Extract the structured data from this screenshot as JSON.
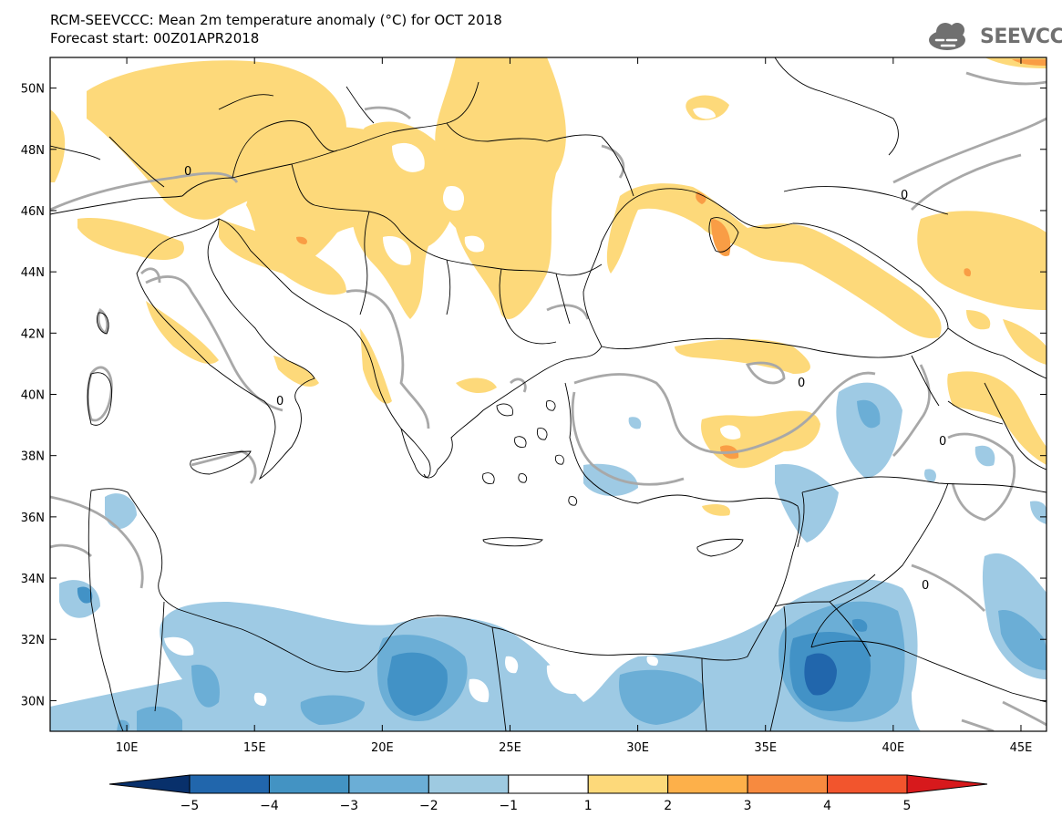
{
  "title": {
    "line1": "RCM-SEEVCCC: Mean 2m temperature anomaly (°C) for OCT 2018",
    "line2": "Forecast start: 00Z01APR2018"
  },
  "logo": {
    "text": "SEEVCCC"
  },
  "map": {
    "lon_range": [
      7,
      46
    ],
    "lat_range": [
      29,
      51
    ],
    "lon_ticks": [
      {
        "v": 10,
        "label": "10E"
      },
      {
        "v": 15,
        "label": "15E"
      },
      {
        "v": 20,
        "label": "20E"
      },
      {
        "v": 25,
        "label": "25E"
      },
      {
        "v": 30,
        "label": "30E"
      },
      {
        "v": 35,
        "label": "35E"
      },
      {
        "v": 40,
        "label": "40E"
      },
      {
        "v": 45,
        "label": "45E"
      }
    ],
    "lat_ticks": [
      {
        "v": 30,
        "label": "30N"
      },
      {
        "v": 32,
        "label": "32N"
      },
      {
        "v": 34,
        "label": "34N"
      },
      {
        "v": 36,
        "label": "36N"
      },
      {
        "v": 38,
        "label": "38N"
      },
      {
        "v": 40,
        "label": "40N"
      },
      {
        "v": 42,
        "label": "42N"
      },
      {
        "v": 44,
        "label": "44N"
      },
      {
        "v": 46,
        "label": "46N"
      },
      {
        "v": 48,
        "label": "48N"
      },
      {
        "v": 50,
        "label": "50N"
      }
    ],
    "contour_label": "0",
    "colors": {
      "warm1": "#fdd97a",
      "warm2": "#fcb04a",
      "warm3": "#f78a3f",
      "cool1": "#9ecae4",
      "cool2": "#6baed6",
      "cool3": "#4292c6",
      "cool4": "#2166ac",
      "zero_line": "#a8a8a8",
      "border": "#000000"
    }
  },
  "colorbar": {
    "colors": [
      "#08306b",
      "#2166ac",
      "#4393c3",
      "#6baed6",
      "#9ecae1",
      "#ffffff",
      "#fdd97a",
      "#fdb04a",
      "#f78a3f",
      "#f2552d",
      "#d7191c"
    ],
    "labels": [
      "−5",
      "−4",
      "−3",
      "−2",
      "−1",
      "1",
      "2",
      "3",
      "4",
      "5"
    ]
  }
}
